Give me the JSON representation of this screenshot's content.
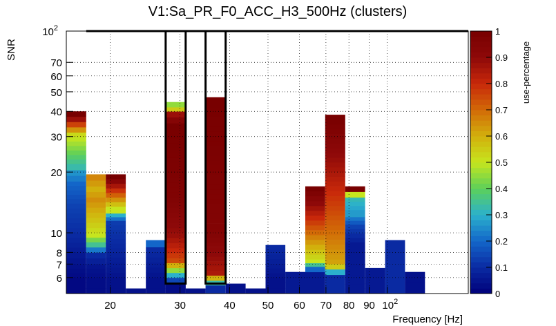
{
  "chart_data": {
    "type": "heatmap",
    "title": "V1:Sa_PR_F0_ACC_H3_500Hz (clusters)",
    "xlabel": "Frequency [Hz]",
    "ylabel": "SNR",
    "zlabel": "use-percentage",
    "x_scale": "log",
    "y_scale": "log",
    "xlim": [
      15.5,
      160
    ],
    "ylim": [
      5,
      100
    ],
    "zlim": [
      0,
      1
    ],
    "x_ticks": [
      {
        "value": 20,
        "label": "20"
      },
      {
        "value": 30,
        "label": "30"
      },
      {
        "value": 40,
        "label": "40"
      },
      {
        "value": 50,
        "label": "50"
      },
      {
        "value": 60,
        "label": "60"
      },
      {
        "value": 70,
        "label": "70"
      },
      {
        "value": 80,
        "label": "80"
      },
      {
        "value": 90,
        "label": "90"
      },
      {
        "value": 100,
        "label": "10",
        "sup": "2"
      }
    ],
    "y_ticks": [
      {
        "value": 6,
        "label": "6"
      },
      {
        "value": 7,
        "label": "7"
      },
      {
        "value": 8,
        "label": "8"
      },
      {
        "value": 10,
        "label": "10"
      },
      {
        "value": 20,
        "label": "20"
      },
      {
        "value": 30,
        "label": "30"
      },
      {
        "value": 40,
        "label": "40"
      },
      {
        "value": 50,
        "label": "50"
      },
      {
        "value": 60,
        "label": "60"
      },
      {
        "value": 70,
        "label": "70"
      },
      {
        "value": 100,
        "label": "10",
        "sup": "2"
      }
    ],
    "z_ticks": [
      {
        "value": 0,
        "label": "0"
      },
      {
        "value": 0.1,
        "label": "0.1"
      },
      {
        "value": 0.2,
        "label": "0.2"
      },
      {
        "value": 0.3,
        "label": "0.3"
      },
      {
        "value": 0.4,
        "label": "0.4"
      },
      {
        "value": 0.5,
        "label": "0.5"
      },
      {
        "value": 0.6,
        "label": "0.6"
      },
      {
        "value": 0.7,
        "label": "0.7"
      },
      {
        "value": 0.8,
        "label": "0.8"
      },
      {
        "value": 0.9,
        "label": "0.9"
      },
      {
        "value": 1,
        "label": "1"
      }
    ],
    "bins": [
      {
        "x0": 15.5,
        "x1": 17.4,
        "ymax": 40,
        "segments": [
          [
            6,
            0.02
          ],
          [
            7,
            0.04
          ],
          [
            8,
            0.06
          ],
          [
            10,
            0.1
          ],
          [
            14,
            0.14
          ],
          [
            18,
            0.2
          ],
          [
            20.5,
            0.26
          ],
          [
            22,
            0.33
          ],
          [
            31.5,
            0.52
          ],
          [
            40,
            1.0
          ]
        ]
      },
      {
        "x0": 17.4,
        "x1": 19.5,
        "ymax": 19.5,
        "segments": [
          [
            6,
            0.03
          ],
          [
            7,
            0.05
          ],
          [
            8,
            0.1
          ],
          [
            9,
            0.35
          ],
          [
            10,
            0.5
          ],
          [
            15,
            0.65
          ],
          [
            17,
            0.6
          ],
          [
            19.5,
            0.66
          ]
        ]
      },
      {
        "x0": 19.5,
        "x1": 21.9,
        "ymax": 19.5,
        "segments": [
          [
            6,
            0.04
          ],
          [
            8,
            0.08
          ],
          [
            11.5,
            0.13
          ],
          [
            12.5,
            0.3
          ],
          [
            13.5,
            0.5
          ],
          [
            19.5,
            1.0
          ]
        ]
      },
      {
        "x0": 21.9,
        "x1": 24.6,
        "ymax": 5.3,
        "segments": [
          [
            5.3,
            0.04
          ]
        ]
      },
      {
        "x0": 24.6,
        "x1": 27.6,
        "ymax": 9.2,
        "segments": [
          [
            6,
            0.04
          ],
          [
            8.5,
            0.1
          ],
          [
            9.2,
            0.2
          ]
        ]
      },
      {
        "x0": 27.6,
        "x1": 31.0,
        "ymax": 44.5,
        "segments": [
          [
            5.6,
            0.03
          ],
          [
            6,
            0.15
          ],
          [
            7.5,
            0.75
          ],
          [
            10,
            0.88
          ],
          [
            15,
            0.96
          ],
          [
            35,
            1.0
          ],
          [
            40,
            0.88
          ],
          [
            42,
            0.55
          ],
          [
            44.5,
            0.45
          ]
        ]
      },
      {
        "x0": 31.0,
        "x1": 34.8,
        "ymax": 5.3,
        "segments": [
          [
            5.3,
            0.04
          ]
        ]
      },
      {
        "x0": 34.8,
        "x1": 39.1,
        "ymax": 47,
        "segments": [
          [
            5.5,
            0.1
          ],
          [
            5.8,
            0.33
          ],
          [
            6.5,
            0.85
          ],
          [
            10,
            0.95
          ],
          [
            47,
            1.0
          ]
        ]
      },
      {
        "x0": 39.1,
        "x1": 43.9,
        "ymax": 5.6,
        "segments": [
          [
            5.6,
            0.04
          ]
        ]
      },
      {
        "x0": 43.9,
        "x1": 49.3,
        "ymax": 5.3,
        "segments": [
          [
            5.3,
            0.04
          ]
        ]
      },
      {
        "x0": 49.3,
        "x1": 55.3,
        "ymax": 8.7,
        "segments": [
          [
            6,
            0.04
          ],
          [
            8.7,
            0.1
          ]
        ]
      },
      {
        "x0": 55.3,
        "x1": 62.1,
        "ymax": 6.4,
        "segments": [
          [
            6.4,
            0.06
          ]
        ]
      },
      {
        "x0": 62.1,
        "x1": 69.7,
        "ymax": 17,
        "segments": [
          [
            6.4,
            0.06
          ],
          [
            6.8,
            0.2
          ],
          [
            7.4,
            0.5
          ],
          [
            17,
            1.0
          ]
        ]
      },
      {
        "x0": 69.7,
        "x1": 78.3,
        "ymax": 38.5,
        "segments": [
          [
            6.2,
            0.1
          ],
          [
            6.6,
            0.3
          ],
          [
            7,
            0.55
          ],
          [
            7.4,
            0.62
          ],
          [
            18,
            0.82
          ],
          [
            38.5,
            1.0
          ]
        ]
      },
      {
        "x0": 78.3,
        "x1": 87.9,
        "ymax": 17,
        "segments": [
          [
            9,
            0.06
          ],
          [
            11,
            0.14
          ],
          [
            12,
            0.22
          ],
          [
            13,
            0.27
          ],
          [
            15,
            0.32
          ],
          [
            16,
            0.5
          ],
          [
            17,
            1.0
          ]
        ]
      },
      {
        "x0": 87.9,
        "x1": 98.7,
        "ymax": 6.7,
        "segments": [
          [
            6.7,
            0.06
          ]
        ]
      },
      {
        "x0": 98.7,
        "x1": 110.8,
        "ymax": 9.2,
        "segments": [
          [
            9.2,
            0.1
          ]
        ]
      },
      {
        "x0": 110.8,
        "x1": 124.4,
        "ymax": 6.4,
        "segments": [
          [
            6.4,
            0.04
          ]
        ]
      }
    ],
    "boxes": [
      {
        "x0": 17.4,
        "x1": 27.6,
        "y0": 100,
        "y1": 100
      },
      {
        "x0": 27.6,
        "x1": 31.0,
        "y0": 5.6,
        "y1": 100
      },
      {
        "x0": 31.0,
        "x1": 34.8,
        "y0": 100,
        "y1": 100
      },
      {
        "x0": 34.8,
        "x1": 39.1,
        "y0": 5.6,
        "y1": 100
      },
      {
        "x0": 39.1,
        "x1": 160,
        "y0": 100,
        "y1": 100
      }
    ],
    "box_color": "#000000",
    "colormap": [
      "#00007a",
      "#0a2aa2",
      "#1366c9",
      "#2bb1cc",
      "#5cd05a",
      "#c6e51e",
      "#d2b00c",
      "#d26a07",
      "#c8280a",
      "#8e0909",
      "#780000"
    ]
  }
}
